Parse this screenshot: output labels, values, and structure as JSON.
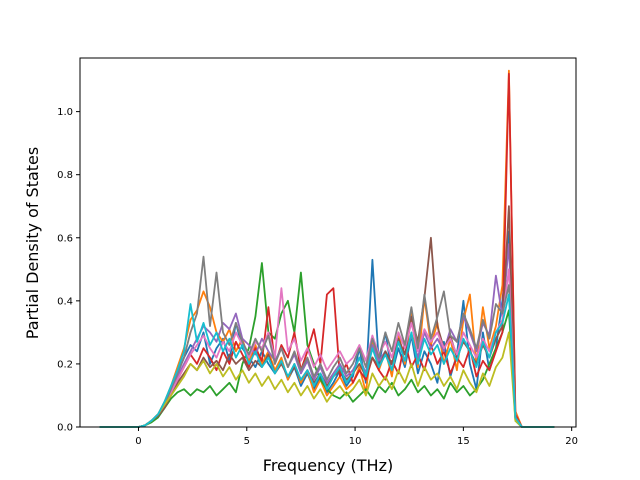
{
  "chart_data": {
    "type": "line",
    "title": "",
    "xlabel": "Frequency (THz)",
    "ylabel": "Partial Density of States",
    "xlim": [
      -2.7,
      20.2
    ],
    "ylim": [
      0.0,
      1.17
    ],
    "xticks": [
      0,
      5,
      10,
      15,
      20
    ],
    "xtick_labels": [
      "0",
      "5",
      "10",
      "15",
      "20"
    ],
    "yticks": [
      0.0,
      0.2,
      0.4,
      0.6,
      0.8,
      1.0
    ],
    "ytick_labels": [
      "0.0",
      "0.2",
      "0.4",
      "0.6",
      "0.8",
      "1.0"
    ],
    "grid": false,
    "legend": "none",
    "x": [
      -1.8,
      -1.2,
      -0.6,
      0,
      0.3,
      0.6,
      0.9,
      1.2,
      1.5,
      1.8,
      2.1,
      2.4,
      2.7,
      3.0,
      3.3,
      3.6,
      3.9,
      4.2,
      4.5,
      4.8,
      5.1,
      5.4,
      5.7,
      6.0,
      6.3,
      6.6,
      6.9,
      7.2,
      7.5,
      7.8,
      8.1,
      8.4,
      8.7,
      9.0,
      9.3,
      9.6,
      9.9,
      10.2,
      10.5,
      10.8,
      11.1,
      11.4,
      11.7,
      12.0,
      12.3,
      12.6,
      12.9,
      13.2,
      13.5,
      13.8,
      14.1,
      14.4,
      14.7,
      15.0,
      15.3,
      15.6,
      15.9,
      16.2,
      16.5,
      16.8,
      17.1,
      17.4,
      17.7,
      18.0,
      18.6,
      19.2
    ],
    "series": [
      {
        "color": "#1f77b4",
        "values": [
          0,
          0,
          0,
          0,
          0.005,
          0.02,
          0.04,
          0.07,
          0.12,
          0.17,
          0.22,
          0.26,
          0.24,
          0.3,
          0.2,
          0.25,
          0.28,
          0.21,
          0.33,
          0.25,
          0.22,
          0.19,
          0.24,
          0.2,
          0.17,
          0.21,
          0.15,
          0.19,
          0.13,
          0.17,
          0.12,
          0.16,
          0.11,
          0.14,
          0.18,
          0.13,
          0.16,
          0.25,
          0.14,
          0.53,
          0.2,
          0.3,
          0.17,
          0.25,
          0.19,
          0.29,
          0.17,
          0.24,
          0.2,
          0.14,
          0.27,
          0.16,
          0.23,
          0.4,
          0.2,
          0.12,
          0.3,
          0.18,
          0.25,
          0.4,
          0.62,
          0.02,
          0,
          0,
          0,
          0
        ]
      },
      {
        "color": "#ff7f0e",
        "values": [
          0,
          0,
          0,
          0,
          0.005,
          0.02,
          0.04,
          0.08,
          0.13,
          0.19,
          0.25,
          0.34,
          0.37,
          0.43,
          0.38,
          0.3,
          0.27,
          0.31,
          0.24,
          0.28,
          0.21,
          0.26,
          0.2,
          0.24,
          0.18,
          0.22,
          0.15,
          0.2,
          0.14,
          0.18,
          0.11,
          0.15,
          0.1,
          0.13,
          0.16,
          0.12,
          0.14,
          0.19,
          0.11,
          0.28,
          0.18,
          0.24,
          0.16,
          0.3,
          0.2,
          0.36,
          0.19,
          0.41,
          0.26,
          0.33,
          0.2,
          0.28,
          0.18,
          0.34,
          0.42,
          0.2,
          0.38,
          0.25,
          0.32,
          0.45,
          1.13,
          0.05,
          0,
          0,
          0,
          0
        ]
      },
      {
        "color": "#2ca02c",
        "values": [
          0,
          0,
          0,
          0,
          0.005,
          0.015,
          0.03,
          0.06,
          0.09,
          0.11,
          0.12,
          0.1,
          0.12,
          0.11,
          0.13,
          0.1,
          0.12,
          0.14,
          0.11,
          0.2,
          0.25,
          0.35,
          0.52,
          0.3,
          0.28,
          0.36,
          0.4,
          0.3,
          0.49,
          0.26,
          0.2,
          0.15,
          0.12,
          0.1,
          0.09,
          0.11,
          0.08,
          0.1,
          0.12,
          0.09,
          0.13,
          0.11,
          0.14,
          0.1,
          0.12,
          0.15,
          0.11,
          0.13,
          0.1,
          0.12,
          0.09,
          0.14,
          0.11,
          0.13,
          0.1,
          0.12,
          0.15,
          0.2,
          0.25,
          0.3,
          0.37,
          0.02,
          0,
          0,
          0,
          0
        ]
      },
      {
        "color": "#d62728",
        "values": [
          0,
          0,
          0,
          0,
          0.005,
          0.02,
          0.04,
          0.07,
          0.11,
          0.15,
          0.19,
          0.23,
          0.2,
          0.25,
          0.22,
          0.18,
          0.24,
          0.2,
          0.27,
          0.23,
          0.19,
          0.25,
          0.21,
          0.38,
          0.2,
          0.26,
          0.22,
          0.3,
          0.18,
          0.24,
          0.31,
          0.2,
          0.42,
          0.44,
          0.16,
          0.2,
          0.14,
          0.18,
          0.15,
          0.22,
          0.18,
          0.15,
          0.21,
          0.17,
          0.27,
          0.19,
          0.23,
          0.18,
          0.26,
          0.2,
          0.24,
          0.17,
          0.22,
          0.19,
          0.25,
          0.16,
          0.21,
          0.18,
          0.24,
          0.3,
          1.12,
          0.04,
          0,
          0,
          0,
          0
        ]
      },
      {
        "color": "#9467bd",
        "values": [
          0,
          0,
          0,
          0,
          0.005,
          0.02,
          0.04,
          0.07,
          0.12,
          0.16,
          0.2,
          0.24,
          0.28,
          0.32,
          0.3,
          0.27,
          0.33,
          0.31,
          0.36,
          0.28,
          0.26,
          0.23,
          0.28,
          0.24,
          0.21,
          0.25,
          0.19,
          0.23,
          0.17,
          0.21,
          0.15,
          0.19,
          0.14,
          0.17,
          0.2,
          0.16,
          0.18,
          0.22,
          0.17,
          0.26,
          0.21,
          0.24,
          0.2,
          0.27,
          0.23,
          0.29,
          0.22,
          0.3,
          0.25,
          0.28,
          0.24,
          0.31,
          0.27,
          0.35,
          0.3,
          0.24,
          0.33,
          0.29,
          0.48,
          0.35,
          0.58,
          0.03,
          0,
          0,
          0,
          0
        ]
      },
      {
        "color": "#8c564b",
        "values": [
          0,
          0,
          0,
          0,
          0.005,
          0.02,
          0.035,
          0.06,
          0.1,
          0.14,
          0.17,
          0.2,
          0.18,
          0.22,
          0.19,
          0.21,
          0.18,
          0.23,
          0.2,
          0.22,
          0.18,
          0.21,
          0.19,
          0.23,
          0.17,
          0.2,
          0.16,
          0.19,
          0.15,
          0.18,
          0.14,
          0.17,
          0.13,
          0.16,
          0.18,
          0.15,
          0.17,
          0.2,
          0.16,
          0.22,
          0.19,
          0.24,
          0.2,
          0.28,
          0.23,
          0.35,
          0.27,
          0.41,
          0.6,
          0.32,
          0.25,
          0.29,
          0.22,
          0.27,
          0.24,
          0.2,
          0.26,
          0.22,
          0.28,
          0.32,
          0.7,
          0.03,
          0,
          0,
          0,
          0
        ]
      },
      {
        "color": "#e377c2",
        "values": [
          0,
          0,
          0,
          0,
          0.005,
          0.02,
          0.04,
          0.07,
          0.11,
          0.15,
          0.19,
          0.23,
          0.26,
          0.29,
          0.25,
          0.22,
          0.27,
          0.24,
          0.3,
          0.26,
          0.22,
          0.27,
          0.25,
          0.3,
          0.22,
          0.44,
          0.24,
          0.28,
          0.21,
          0.25,
          0.19,
          0.23,
          0.18,
          0.21,
          0.24,
          0.2,
          0.22,
          0.26,
          0.21,
          0.29,
          0.23,
          0.27,
          0.22,
          0.3,
          0.25,
          0.33,
          0.24,
          0.31,
          0.27,
          0.3,
          0.25,
          0.28,
          0.23,
          0.3,
          0.26,
          0.22,
          0.28,
          0.24,
          0.3,
          0.34,
          0.5,
          0.03,
          0,
          0,
          0,
          0
        ]
      },
      {
        "color": "#7f7f7f",
        "values": [
          0,
          0,
          0,
          0,
          0.005,
          0.02,
          0.04,
          0.07,
          0.12,
          0.17,
          0.22,
          0.3,
          0.36,
          0.54,
          0.32,
          0.49,
          0.3,
          0.26,
          0.33,
          0.27,
          0.23,
          0.28,
          0.24,
          0.29,
          0.2,
          0.25,
          0.19,
          0.24,
          0.18,
          0.22,
          0.16,
          0.2,
          0.15,
          0.19,
          0.22,
          0.17,
          0.2,
          0.25,
          0.19,
          0.28,
          0.22,
          0.3,
          0.24,
          0.33,
          0.26,
          0.38,
          0.25,
          0.42,
          0.28,
          0.35,
          0.43,
          0.29,
          0.27,
          0.36,
          0.31,
          0.25,
          0.34,
          0.28,
          0.39,
          0.36,
          0.45,
          0.03,
          0,
          0,
          0,
          0
        ]
      },
      {
        "color": "#bcbd22",
        "values": [
          0,
          0,
          0,
          0,
          0.005,
          0.02,
          0.04,
          0.07,
          0.1,
          0.13,
          0.16,
          0.2,
          0.18,
          0.21,
          0.17,
          0.2,
          0.16,
          0.19,
          0.15,
          0.18,
          0.14,
          0.17,
          0.13,
          0.16,
          0.12,
          0.15,
          0.11,
          0.14,
          0.1,
          0.13,
          0.09,
          0.12,
          0.08,
          0.11,
          0.13,
          0.1,
          0.12,
          0.15,
          0.1,
          0.17,
          0.13,
          0.16,
          0.12,
          0.18,
          0.14,
          0.2,
          0.13,
          0.19,
          0.15,
          0.17,
          0.13,
          0.16,
          0.12,
          0.18,
          0.14,
          0.11,
          0.17,
          0.13,
          0.19,
          0.22,
          0.3,
          0.02,
          0,
          0,
          0,
          0
        ]
      },
      {
        "color": "#17becf",
        "values": [
          0,
          0,
          0,
          0,
          0.005,
          0.02,
          0.04,
          0.08,
          0.13,
          0.18,
          0.24,
          0.39,
          0.27,
          0.33,
          0.26,
          0.3,
          0.24,
          0.28,
          0.22,
          0.26,
          0.2,
          0.24,
          0.19,
          0.22,
          0.17,
          0.21,
          0.16,
          0.2,
          0.15,
          0.18,
          0.13,
          0.17,
          0.12,
          0.16,
          0.19,
          0.14,
          0.17,
          0.22,
          0.16,
          0.25,
          0.19,
          0.23,
          0.18,
          0.27,
          0.21,
          0.3,
          0.2,
          0.28,
          0.23,
          0.26,
          0.2,
          0.25,
          0.21,
          0.28,
          0.24,
          0.19,
          0.27,
          0.22,
          0.3,
          0.33,
          0.42,
          0.03,
          0,
          0,
          0,
          0
        ]
      }
    ]
  }
}
